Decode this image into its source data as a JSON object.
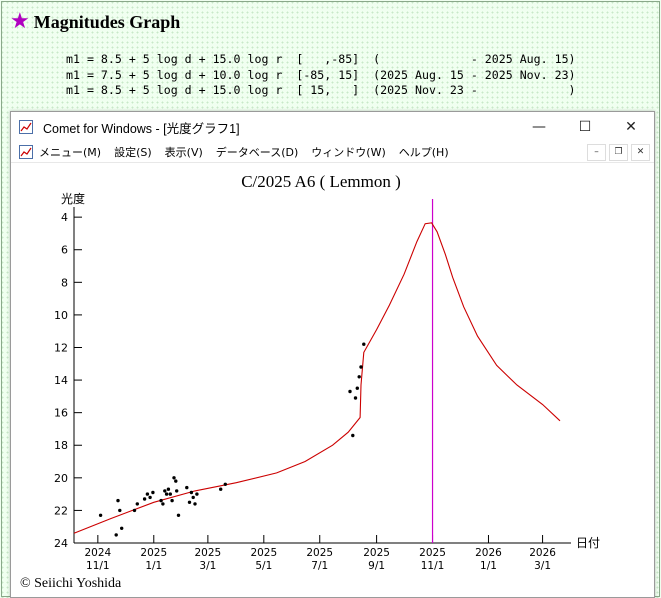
{
  "page": {
    "title": "Magnitudes Graph",
    "star_icon": "star-icon",
    "formulas": [
      "m1 = 8.5 + 5 log d + 15.0 log r  [   ,-85]  (             - 2025 Aug. 15)",
      "m1 = 7.5 + 5 log d + 10.0 log r  [-85, 15]  (2025 Aug. 15 - 2025 Nov. 23)",
      "m1 = 8.5 + 5 log d + 15.0 log r  [ 15,   ]  (2025 Nov. 23 -             )"
    ]
  },
  "window": {
    "title": "Comet for Windows - [光度グラフ1]",
    "buttons": {
      "minimize": "—",
      "maximize": "☐",
      "close": "✕"
    },
    "menu": [
      "メニュー(M)",
      "設定(S)",
      "表示(V)",
      "データベース(D)",
      "ウィンドウ(W)",
      "ヘルプ(H)"
    ]
  },
  "colors": {
    "curve": "#cc0000",
    "today_line": "#cc00cc",
    "axis": "#000000",
    "accent_star": "#b000c0"
  },
  "chart_data": {
    "type": "line",
    "title": "C/2025 A6 ( Lemmon )",
    "ylabel": "光度",
    "xlabel": "日付",
    "copyright": "© Seiichi Yoshida",
    "ylim": [
      24,
      3.5
    ],
    "y_ticks": [
      4,
      6,
      8,
      10,
      12,
      14,
      16,
      18,
      20,
      22,
      24
    ],
    "x_ticks": [
      {
        "date": "2024-11-01",
        "line1": "2024",
        "line2": "11/1"
      },
      {
        "date": "2025-01-01",
        "line1": "2025",
        "line2": "1/1"
      },
      {
        "date": "2025-03-01",
        "line1": "2025",
        "line2": "3/1"
      },
      {
        "date": "2025-05-01",
        "line1": "2025",
        "line2": "5/1"
      },
      {
        "date": "2025-07-01",
        "line1": "2025",
        "line2": "7/1"
      },
      {
        "date": "2025-09-01",
        "line1": "2025",
        "line2": "9/1"
      },
      {
        "date": "2025-11-01",
        "line1": "2025",
        "line2": "11/1"
      },
      {
        "date": "2026-01-01",
        "line1": "2026",
        "line2": "1/1"
      },
      {
        "date": "2026-03-01",
        "line1": "2026",
        "line2": "3/1"
      }
    ],
    "xlim": [
      "2024-10-06",
      "2026-04-01"
    ],
    "today": "2025-11-01",
    "predicted_curve": {
      "name": "predicted",
      "points": [
        [
          "2024-10-06",
          23.4
        ],
        [
          "2024-11-15",
          22.5
        ],
        [
          "2025-01-01",
          21.5
        ],
        [
          "2025-02-15",
          20.8
        ],
        [
          "2025-04-01",
          20.3
        ],
        [
          "2025-05-15",
          19.7
        ],
        [
          "2025-06-15",
          19.0
        ],
        [
          "2025-07-15",
          18.0
        ],
        [
          "2025-08-01",
          17.2
        ],
        [
          "2025-08-14",
          16.3
        ],
        [
          "2025-08-15",
          14.3
        ],
        [
          "2025-08-18",
          12.3
        ],
        [
          "2025-09-01",
          10.9
        ],
        [
          "2025-09-15",
          9.4
        ],
        [
          "2025-10-01",
          7.5
        ],
        [
          "2025-10-15",
          5.5
        ],
        [
          "2025-10-24",
          4.4
        ],
        [
          "2025-10-31",
          4.35
        ],
        [
          "2025-11-06",
          4.9
        ],
        [
          "2025-11-15",
          6.3
        ],
        [
          "2025-11-23",
          7.7
        ],
        [
          "2025-12-05",
          9.5
        ],
        [
          "2025-12-20",
          11.3
        ],
        [
          "2026-01-10",
          13.1
        ],
        [
          "2026-02-01",
          14.3
        ],
        [
          "2026-03-01",
          15.5
        ],
        [
          "2026-03-20",
          16.5
        ]
      ]
    },
    "observations": [
      [
        "2024-11-04",
        22.3
      ],
      [
        "2024-11-21",
        23.5
      ],
      [
        "2024-11-23",
        21.4
      ],
      [
        "2024-11-25",
        22.0
      ],
      [
        "2024-11-27",
        23.1
      ],
      [
        "2024-12-11",
        22.0
      ],
      [
        "2024-12-14",
        21.6
      ],
      [
        "2024-12-22",
        21.3
      ],
      [
        "2024-12-25",
        21.0
      ],
      [
        "2024-12-28",
        21.2
      ],
      [
        "2024-12-31",
        20.9
      ],
      [
        "2025-01-09",
        21.4
      ],
      [
        "2025-01-11",
        21.6
      ],
      [
        "2025-01-13",
        20.8
      ],
      [
        "2025-01-15",
        21.0
      ],
      [
        "2025-01-17",
        20.7
      ],
      [
        "2025-01-19",
        21.0
      ],
      [
        "2025-01-21",
        21.4
      ],
      [
        "2025-01-23",
        20.0
      ],
      [
        "2025-01-25",
        20.2
      ],
      [
        "2025-01-26",
        20.8
      ],
      [
        "2025-01-28",
        22.3
      ],
      [
        "2025-02-06",
        20.6
      ],
      [
        "2025-02-09",
        21.5
      ],
      [
        "2025-02-11",
        20.9
      ],
      [
        "2025-02-13",
        21.2
      ],
      [
        "2025-02-15",
        21.6
      ],
      [
        "2025-02-17",
        21.0
      ],
      [
        "2025-03-15",
        20.7
      ],
      [
        "2025-03-20",
        20.4
      ],
      [
        "2025-08-03",
        14.7
      ],
      [
        "2025-08-06",
        17.4
      ],
      [
        "2025-08-09",
        15.1
      ],
      [
        "2025-08-11",
        14.5
      ],
      [
        "2025-08-13",
        13.8
      ],
      [
        "2025-08-15",
        13.2
      ],
      [
        "2025-08-18",
        11.8
      ]
    ]
  }
}
